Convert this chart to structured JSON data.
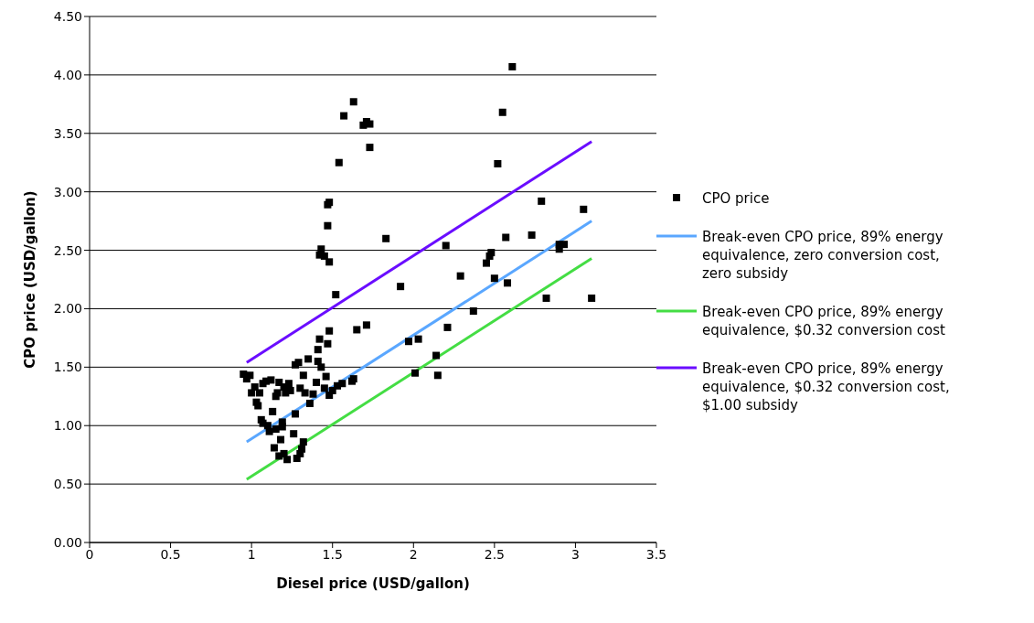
{
  "chart_data": {
    "type": "scatter",
    "xlabel": "Diesel price (USD/gallon)",
    "ylabel": "CPO price (USD/gallon)",
    "xlim": [
      0,
      3.5
    ],
    "xticks": [
      0,
      0.5,
      1,
      1.5,
      2,
      2.5,
      3,
      3.5
    ],
    "ylim": [
      0,
      4.5
    ],
    "yticks": [
      {
        "value": 0,
        "label": "0.00"
      },
      {
        "value": 0.5,
        "label": "0.50"
      },
      {
        "value": 1,
        "label": "1.00"
      },
      {
        "value": 1.5,
        "label": "1.50"
      },
      {
        "value": 2,
        "label": "2.00"
      },
      {
        "value": 2.5,
        "label": "2.50"
      },
      {
        "value": 3,
        "label": "3.00"
      },
      {
        "value": 3.5,
        "label": "3.50"
      },
      {
        "value": 4,
        "label": "4.00"
      },
      {
        "value": 4.5,
        "label": "4.50"
      }
    ],
    "grid": "y",
    "legend": "right",
    "series": [
      {
        "name": "CPO price",
        "marker": "square",
        "color": "#000000",
        "x": [
          0.95,
          0.97,
          0.99,
          1.0,
          1.02,
          1.03,
          1.04,
          1.05,
          1.06,
          1.07,
          1.07,
          1.09,
          1.1,
          1.11,
          1.12,
          1.13,
          1.14,
          1.15,
          1.15,
          1.16,
          1.17,
          1.17,
          1.18,
          1.19,
          1.19,
          1.2,
          1.2,
          1.21,
          1.22,
          1.23,
          1.24,
          1.26,
          1.27,
          1.27,
          1.28,
          1.29,
          1.3,
          1.3,
          1.31,
          1.32,
          1.32,
          1.33,
          1.35,
          1.36,
          1.38,
          1.4,
          1.41,
          1.41,
          1.42,
          1.42,
          1.43,
          1.43,
          1.45,
          1.45,
          1.46,
          1.47,
          1.47,
          1.47,
          1.48,
          1.48,
          1.48,
          1.48,
          1.5,
          1.52,
          1.53,
          1.54,
          1.56,
          1.57,
          1.62,
          1.63,
          1.63,
          1.65,
          1.69,
          1.71,
          1.71,
          1.73,
          1.73,
          1.83,
          1.92,
          1.97,
          2.01,
          2.03,
          2.14,
          2.15,
          2.2,
          2.21,
          2.29,
          2.37,
          2.45,
          2.47,
          2.48,
          2.5,
          2.52,
          2.55,
          2.57,
          2.58,
          2.61,
          2.73,
          2.79,
          2.82,
          2.9,
          2.9,
          2.93,
          3.05,
          3.1
        ],
        "values": [
          1.44,
          1.4,
          1.43,
          1.28,
          1.33,
          1.2,
          1.17,
          1.28,
          1.05,
          1.02,
          1.36,
          1.38,
          1.0,
          0.95,
          1.39,
          1.12,
          0.81,
          1.25,
          0.97,
          1.28,
          0.74,
          1.37,
          0.88,
          1.03,
          0.99,
          0.76,
          1.33,
          1.28,
          0.71,
          1.36,
          1.3,
          0.93,
          1.52,
          1.1,
          0.72,
          1.54,
          1.32,
          0.76,
          0.8,
          0.86,
          1.43,
          1.28,
          1.57,
          1.19,
          1.27,
          1.37,
          1.55,
          1.65,
          1.74,
          2.46,
          2.51,
          1.5,
          2.45,
          1.32,
          1.42,
          1.7,
          2.71,
          2.89,
          2.91,
          2.4,
          1.26,
          1.81,
          1.3,
          2.12,
          1.34,
          3.25,
          1.36,
          3.65,
          1.38,
          3.77,
          1.4,
          1.82,
          3.57,
          1.86,
          3.6,
          3.58,
          3.38,
          2.6,
          2.19,
          1.72,
          1.45,
          1.74,
          1.6,
          1.43,
          2.54,
          1.84,
          2.28,
          1.98,
          2.39,
          2.45,
          2.48,
          2.26,
          3.24,
          3.68,
          2.61,
          2.22,
          4.07,
          2.63,
          2.92,
          2.09,
          2.55,
          2.51,
          2.55,
          2.85,
          2.09
        ]
      },
      {
        "name": "Break-even CPO price, 89% energy equivalence, zero conversion cost, zero subsidy",
        "type": "line",
        "color": "#5aa7ff",
        "x": [
          0.97,
          3.1
        ],
        "values": [
          0.86,
          2.75
        ]
      },
      {
        "name": "Break-even CPO price, 89% energy equivalence, $0.32 conversion cost",
        "type": "line",
        "color": "#44dd44",
        "x": [
          0.97,
          3.1
        ],
        "values": [
          0.54,
          2.43
        ]
      },
      {
        "name": "Break-even CPO price, 89% energy equivalence, $0.32 conversion cost, $1.00 subsidy",
        "type": "line",
        "color": "#6a0dff",
        "x": [
          0.97,
          3.1
        ],
        "values": [
          1.54,
          3.43
        ]
      }
    ]
  }
}
